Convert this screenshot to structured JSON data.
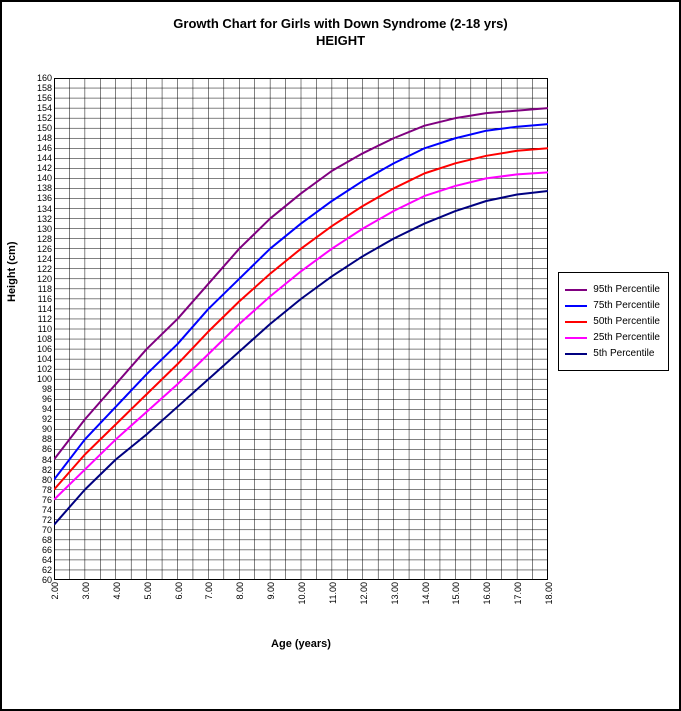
{
  "title_line1": "Growth Chart for Girls with Down Syndrome (2-18 yrs)",
  "title_line2": "HEIGHT",
  "x_axis_label": "Age (years)",
  "y_axis_label": "Height (cm)",
  "chart": {
    "type": "line",
    "xlim": [
      2,
      18
    ],
    "ylim": [
      60,
      160
    ],
    "x_major_ticks": [
      2,
      3,
      4,
      5,
      6,
      7,
      8,
      9,
      10,
      11,
      12,
      13,
      14,
      15,
      16,
      17,
      18
    ],
    "x_tick_labels": [
      "2.00",
      "3.00",
      "4.00",
      "5.00",
      "6.00",
      "7.00",
      "8.00",
      "9.00",
      "10.00",
      "11.00",
      "12.00",
      "13.00",
      "14.00",
      "15.00",
      "16.00",
      "17.00",
      "18.00"
    ],
    "x_minor_step": 0.5,
    "y_major_ticks": [
      60,
      62,
      64,
      66,
      68,
      70,
      72,
      74,
      76,
      78,
      80,
      82,
      84,
      86,
      88,
      90,
      92,
      94,
      96,
      98,
      100,
      102,
      104,
      106,
      108,
      110,
      112,
      114,
      116,
      118,
      120,
      122,
      124,
      126,
      128,
      130,
      132,
      134,
      136,
      138,
      140,
      142,
      144,
      146,
      148,
      150,
      152,
      154,
      156,
      158,
      160
    ],
    "y_minor_step": 2,
    "background_color": "#ffffff",
    "grid_color": "#000000",
    "grid_width_major": 0.5,
    "grid_width_minor": 0.5,
    "line_width": 2,
    "series": [
      {
        "label": "95th Percentile",
        "color": "#800080",
        "x": [
          2,
          3,
          4,
          5,
          6,
          7,
          8,
          9,
          10,
          11,
          12,
          13,
          14,
          15,
          16,
          17,
          18
        ],
        "y": [
          84,
          92,
          99,
          106,
          112,
          119,
          126,
          132,
          137,
          141.5,
          145,
          148,
          150.5,
          152,
          153,
          153.5,
          154
        ]
      },
      {
        "label": "75th Percentile",
        "color": "#0000ff",
        "x": [
          2,
          3,
          4,
          5,
          6,
          7,
          8,
          9,
          10,
          11,
          12,
          13,
          14,
          15,
          16,
          17,
          18
        ],
        "y": [
          80,
          88,
          94.5,
          101,
          107,
          114,
          120,
          126,
          131,
          135.5,
          139.5,
          143,
          146,
          148,
          149.5,
          150.3,
          150.8
        ]
      },
      {
        "label": "50th Percentile",
        "color": "#ff0000",
        "x": [
          2,
          3,
          4,
          5,
          6,
          7,
          8,
          9,
          10,
          11,
          12,
          13,
          14,
          15,
          16,
          17,
          18
        ],
        "y": [
          78,
          85,
          91,
          97,
          103,
          109.5,
          115.5,
          121,
          126,
          130.5,
          134.5,
          138,
          141,
          143,
          144.5,
          145.5,
          146
        ]
      },
      {
        "label": "25th Percentile",
        "color": "#ff00ff",
        "x": [
          2,
          3,
          4,
          5,
          6,
          7,
          8,
          9,
          10,
          11,
          12,
          13,
          14,
          15,
          16,
          17,
          18
        ],
        "y": [
          76,
          82,
          88,
          93.5,
          99,
          105,
          111,
          116.5,
          121.5,
          126,
          130,
          133.5,
          136.5,
          138.5,
          140,
          140.8,
          141.2
        ]
      },
      {
        "label": "5th Percentile",
        "color": "#000080",
        "x": [
          2,
          3,
          4,
          5,
          6,
          7,
          8,
          9,
          10,
          11,
          12,
          13,
          14,
          15,
          16,
          17,
          18
        ],
        "y": [
          71,
          78,
          84,
          89,
          94.5,
          100,
          105.5,
          111,
          116,
          120.5,
          124.5,
          128,
          131,
          133.5,
          135.5,
          136.8,
          137.5
        ]
      }
    ]
  },
  "legend": {
    "entries": [
      {
        "label": "95th Percentile",
        "color": "#800080"
      },
      {
        "label": "75th Percentile",
        "color": "#0000ff"
      },
      {
        "label": "50th Percentile",
        "color": "#ff0000"
      },
      {
        "label": "25th Percentile",
        "color": "#ff00ff"
      },
      {
        "label": "5th Percentile",
        "color": "#000080"
      }
    ]
  }
}
